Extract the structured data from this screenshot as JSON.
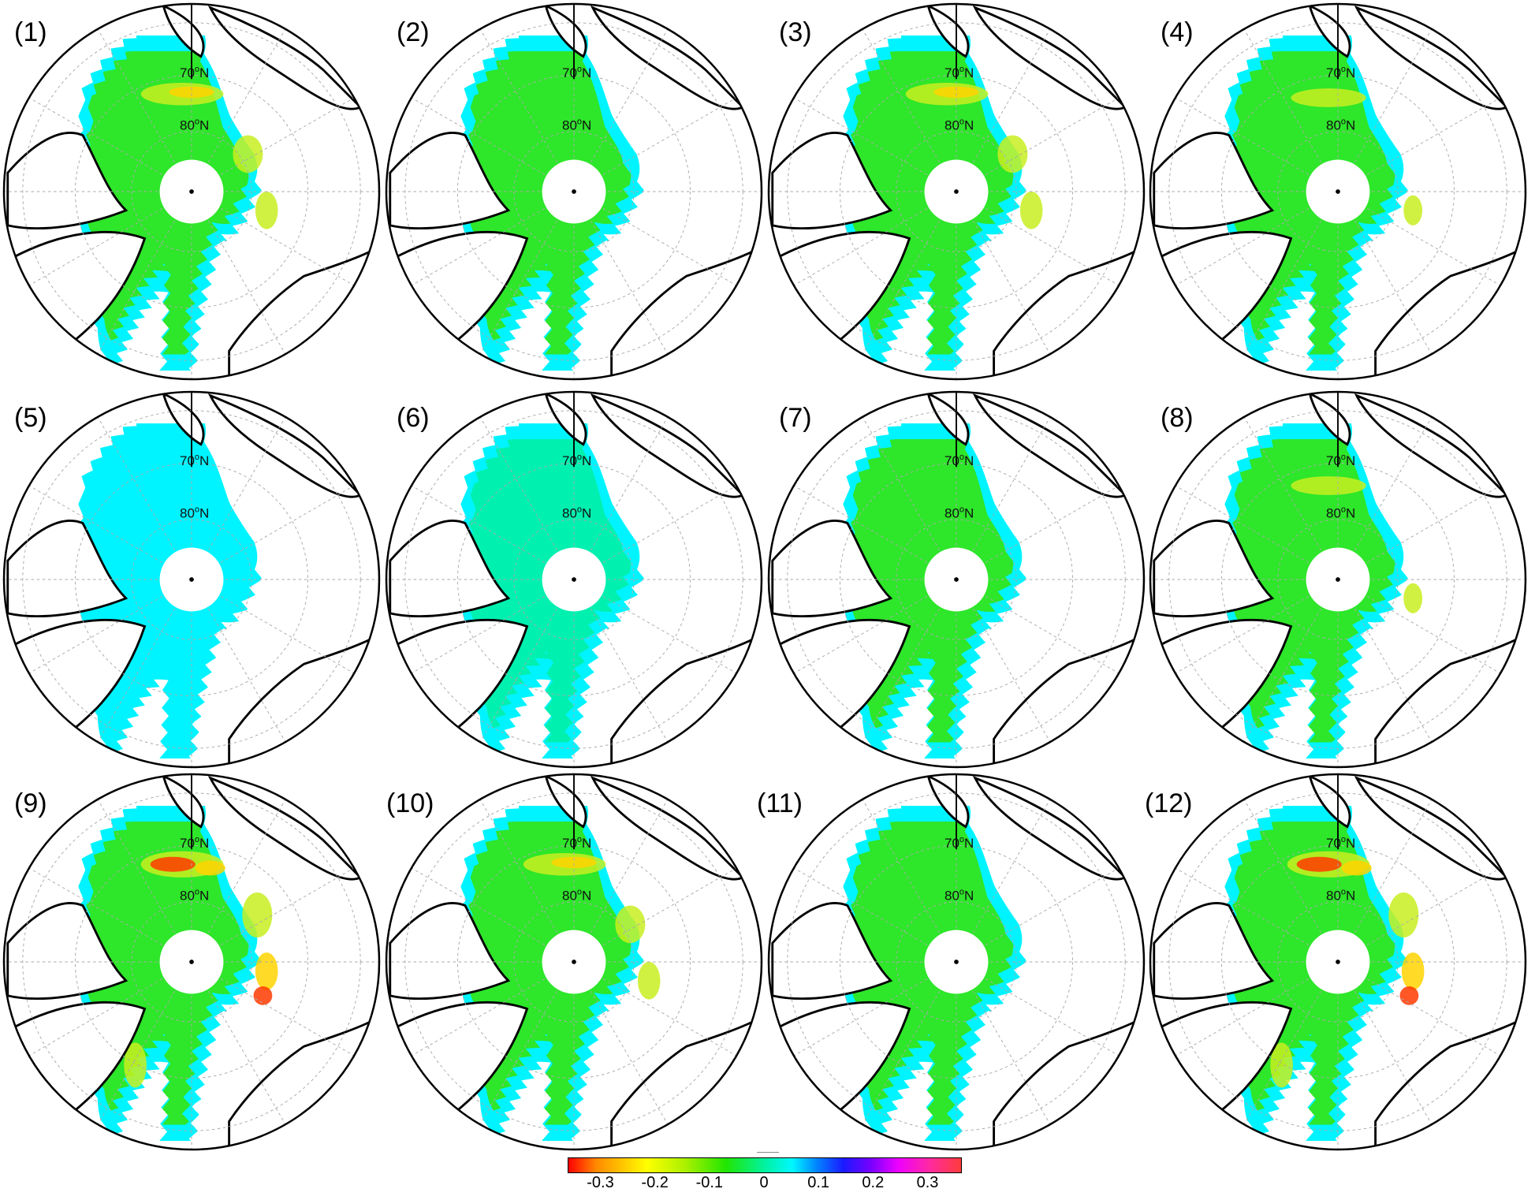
{
  "figure": {
    "panels": [
      {
        "label": "(1)",
        "variant": "warm"
      },
      {
        "label": "(2)",
        "variant": "neutral"
      },
      {
        "label": "(3)",
        "variant": "warm"
      },
      {
        "label": "(4)",
        "variant": "mild"
      },
      {
        "label": "(5)",
        "variant": "cool"
      },
      {
        "label": "(6)",
        "variant": "cool-mid"
      },
      {
        "label": "(7)",
        "variant": "neutral"
      },
      {
        "label": "(8)",
        "variant": "mild"
      },
      {
        "label": "(9)",
        "variant": "hot"
      },
      {
        "label": "(10)",
        "variant": "warm"
      },
      {
        "label": "(11)",
        "variant": "neutral"
      },
      {
        "label": "(12)",
        "variant": "hot"
      }
    ],
    "latitude_labels": {
      "lat70": {
        "deg": "70",
        "sup": "o",
        "hemi": "N"
      },
      "lat80": {
        "deg": "80",
        "sup": "o",
        "hemi": "N"
      }
    },
    "colors": {
      "ocean_open": "#ffffff",
      "coastline": "#000000",
      "ice_edge": "#00f4ff",
      "ice_main": "#2ee62a",
      "ice_cool": "#00f0b0",
      "ice_warm": "#c8ef20",
      "ice_hot": "#ffd400",
      "ice_hottest": "#ff3a00"
    }
  },
  "colorbar": {
    "ticks": [
      "-0.3",
      "-0.2",
      "-0.1",
      "0",
      "0.1",
      "0.2",
      "0.3"
    ],
    "tick_values": [
      -0.3,
      -0.2,
      -0.1,
      0,
      0.1,
      0.2,
      0.3
    ],
    "range": [
      -0.36,
      0.36
    ]
  }
}
